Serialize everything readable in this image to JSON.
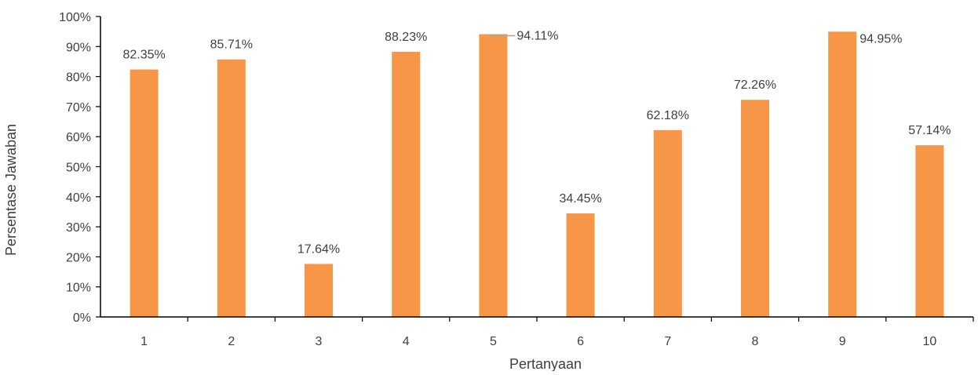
{
  "chart_data": {
    "type": "bar",
    "title": "",
    "xlabel": "Pertanyaan",
    "ylabel": "Persentase Jawaban",
    "categories": [
      "1",
      "2",
      "3",
      "4",
      "5",
      "6",
      "7",
      "8",
      "9",
      "10"
    ],
    "values": [
      82.35,
      85.71,
      17.64,
      88.23,
      94.11,
      34.45,
      62.18,
      72.26,
      94.95,
      57.14
    ],
    "data_labels": [
      "82.35%",
      "85.71%",
      "17.64%",
      "88.23%",
      "94.11%",
      "34.45%",
      "62.18%",
      "72.26%",
      "94.95%",
      "57.14%"
    ],
    "ylim": [
      0,
      100
    ],
    "y_ticks": [
      0,
      10,
      20,
      30,
      40,
      50,
      60,
      70,
      80,
      90,
      100
    ],
    "y_tick_labels": [
      "0%",
      "10%",
      "20%",
      "30%",
      "40%",
      "50%",
      "60%",
      "70%",
      "80%",
      "90%",
      "100%"
    ],
    "grid": false,
    "legend": "none",
    "bar_color": "#F79646",
    "axis_color": "#000000",
    "text_color": "#404040",
    "leader_line_color": "#A6A6A6"
  }
}
